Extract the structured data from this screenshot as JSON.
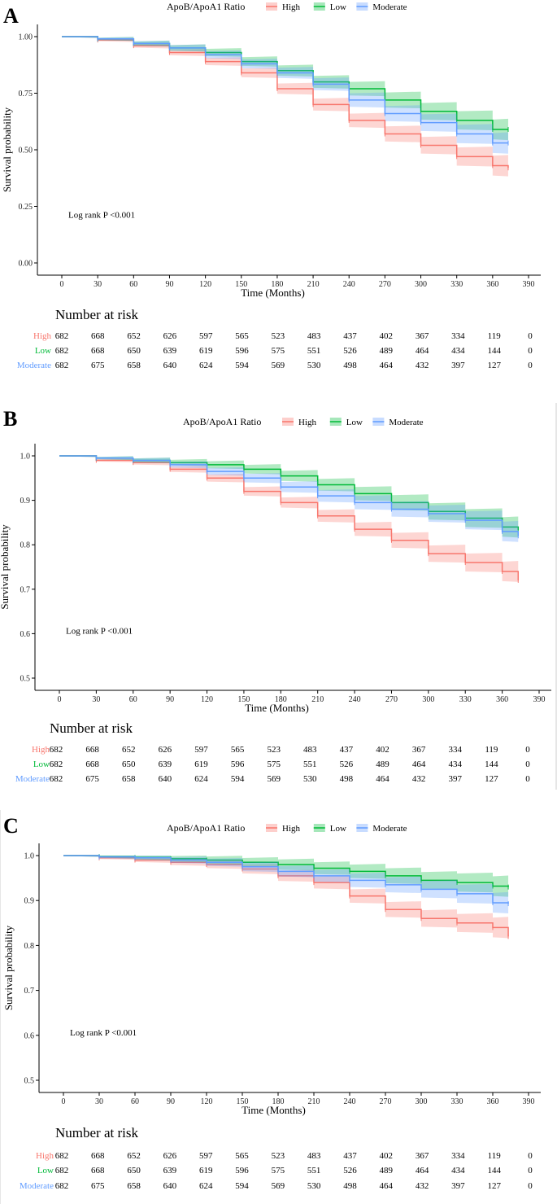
{
  "legend": {
    "title": "ApoB/ApoA1 Ratio",
    "entries": [
      {
        "name": "High",
        "color": "#F8766D"
      },
      {
        "name": "Low",
        "color": "#00BA38"
      },
      {
        "name": "Moderate",
        "color": "#619CFF"
      }
    ]
  },
  "risk_table": {
    "title": "Number at risk",
    "rows": [
      {
        "group": "High",
        "values": [
          682,
          668,
          652,
          626,
          597,
          565,
          523,
          483,
          437,
          402,
          367,
          334,
          119,
          0
        ]
      },
      {
        "group": "Low",
        "values": [
          682,
          668,
          650,
          639,
          619,
          596,
          575,
          551,
          526,
          489,
          464,
          434,
          144,
          0
        ]
      },
      {
        "group": "Moderate",
        "values": [
          682,
          675,
          658,
          640,
          624,
          594,
          569,
          530,
          498,
          464,
          432,
          397,
          127,
          0
        ]
      }
    ]
  },
  "chart_data": [
    {
      "panel": "A",
      "type": "line",
      "title": "",
      "xlabel": "Time (Months)",
      "ylabel": "Survival probability",
      "xlim": [
        0,
        390
      ],
      "ylim": [
        0,
        1
      ],
      "xticks": [
        0,
        30,
        60,
        90,
        120,
        150,
        180,
        210,
        240,
        270,
        300,
        330,
        360,
        390
      ],
      "yticks": [
        0.0,
        0.25,
        0.5,
        0.75,
        1.0
      ],
      "ytick_labels": [
        "0.00",
        "0.25",
        "0.50",
        "0.75",
        "1.00"
      ],
      "annotation": "Log rank P <0.001",
      "series": [
        {
          "name": "High",
          "x": [
            0,
            30,
            60,
            90,
            120,
            150,
            180,
            210,
            240,
            270,
            300,
            330,
            360,
            373
          ],
          "y": [
            1.0,
            0.985,
            0.96,
            0.93,
            0.89,
            0.84,
            0.77,
            0.7,
            0.63,
            0.57,
            0.52,
            0.47,
            0.43,
            0.42
          ]
        },
        {
          "name": "Low",
          "x": [
            0,
            30,
            60,
            90,
            120,
            150,
            180,
            210,
            240,
            270,
            300,
            330,
            360,
            373
          ],
          "y": [
            1.0,
            0.99,
            0.97,
            0.95,
            0.93,
            0.89,
            0.85,
            0.8,
            0.77,
            0.72,
            0.67,
            0.63,
            0.59,
            0.59
          ]
        },
        {
          "name": "Moderate",
          "x": [
            0,
            30,
            60,
            90,
            120,
            150,
            180,
            210,
            240,
            270,
            300,
            330,
            360,
            373
          ],
          "y": [
            1.0,
            0.99,
            0.97,
            0.95,
            0.92,
            0.88,
            0.84,
            0.79,
            0.72,
            0.66,
            0.62,
            0.57,
            0.53,
            0.53
          ]
        }
      ]
    },
    {
      "panel": "B",
      "type": "line",
      "title": "",
      "xlabel": "Time (Months)",
      "ylabel": "Survival probability",
      "xlim": [
        0,
        390
      ],
      "ylim": [
        0.5,
        1.0
      ],
      "xticks": [
        0,
        30,
        60,
        90,
        120,
        150,
        180,
        210,
        240,
        270,
        300,
        330,
        360,
        390
      ],
      "yticks": [
        0.5,
        0.6,
        0.7,
        0.8,
        0.9,
        1.0
      ],
      "ytick_labels": [
        "0.5",
        "0.6",
        "0.7",
        "0.8",
        "0.9",
        "1.0"
      ],
      "annotation": "Log rank P <0.001",
      "series": [
        {
          "name": "High",
          "x": [
            0,
            30,
            60,
            90,
            120,
            150,
            180,
            210,
            240,
            270,
            300,
            330,
            360,
            373
          ],
          "y": [
            1.0,
            0.99,
            0.985,
            0.97,
            0.95,
            0.92,
            0.895,
            0.865,
            0.835,
            0.81,
            0.78,
            0.76,
            0.74,
            0.72
          ]
        },
        {
          "name": "Low",
          "x": [
            0,
            30,
            60,
            90,
            120,
            150,
            180,
            210,
            240,
            270,
            300,
            330,
            360,
            373
          ],
          "y": [
            1.0,
            0.995,
            0.99,
            0.985,
            0.98,
            0.97,
            0.955,
            0.935,
            0.915,
            0.895,
            0.875,
            0.86,
            0.84,
            0.833
          ]
        },
        {
          "name": "Moderate",
          "x": [
            0,
            30,
            60,
            90,
            120,
            150,
            180,
            210,
            240,
            270,
            300,
            330,
            360,
            373
          ],
          "y": [
            1.0,
            0.995,
            0.99,
            0.98,
            0.965,
            0.95,
            0.93,
            0.91,
            0.895,
            0.88,
            0.87,
            0.855,
            0.83,
            0.82
          ]
        }
      ]
    },
    {
      "panel": "C",
      "type": "line",
      "title": "",
      "xlabel": "Time (Months)",
      "ylabel": "Survival probability",
      "xlim": [
        0,
        390
      ],
      "ylim": [
        0.5,
        1.0
      ],
      "xticks": [
        0,
        30,
        60,
        90,
        120,
        150,
        180,
        210,
        240,
        270,
        300,
        330,
        360,
        390
      ],
      "yticks": [
        0.5,
        0.6,
        0.7,
        0.8,
        0.9,
        1.0
      ],
      "ytick_labels": [
        "0.5",
        "0.6",
        "0.7",
        "0.8",
        "0.9",
        "1.0"
      ],
      "annotation": "Log rank P <0.001",
      "series": [
        {
          "name": "High",
          "x": [
            0,
            30,
            60,
            90,
            120,
            150,
            180,
            210,
            240,
            270,
            300,
            330,
            360,
            373
          ],
          "y": [
            1.0,
            0.995,
            0.99,
            0.985,
            0.98,
            0.97,
            0.955,
            0.94,
            0.91,
            0.88,
            0.86,
            0.85,
            0.84,
            0.82
          ]
        },
        {
          "name": "Low",
          "x": [
            0,
            30,
            60,
            90,
            120,
            150,
            180,
            210,
            240,
            270,
            300,
            330,
            360,
            373
          ],
          "y": [
            1.0,
            0.998,
            0.996,
            0.993,
            0.99,
            0.985,
            0.98,
            0.972,
            0.965,
            0.955,
            0.945,
            0.94,
            0.932,
            0.93
          ]
        },
        {
          "name": "Moderate",
          "x": [
            0,
            30,
            60,
            90,
            120,
            150,
            180,
            210,
            240,
            270,
            300,
            330,
            360,
            373
          ],
          "y": [
            1.0,
            0.997,
            0.995,
            0.99,
            0.985,
            0.975,
            0.965,
            0.955,
            0.945,
            0.935,
            0.925,
            0.915,
            0.895,
            0.893
          ]
        }
      ]
    }
  ]
}
